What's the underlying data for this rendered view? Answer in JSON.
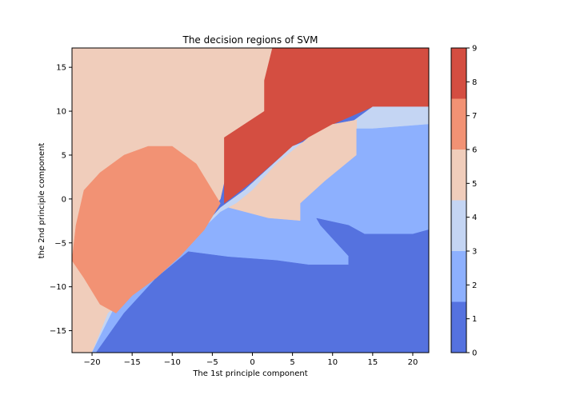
{
  "chart_data": {
    "type": "heatmap",
    "title": "The decision regions of SVM",
    "xlabel": "The 1st principle component",
    "ylabel": "the 2nd principle component",
    "xlim": [
      -22.5,
      22
    ],
    "ylim": [
      -17.5,
      17.2
    ],
    "xticks": [
      -20,
      -15,
      -10,
      -5,
      0,
      5,
      10,
      15,
      20
    ],
    "yticks": [
      -15,
      -10,
      -5,
      0,
      5,
      10,
      15
    ],
    "colorbar": {
      "ticks": [
        0,
        1,
        2,
        3,
        4,
        5,
        6,
        7,
        8,
        9
      ],
      "levels": [
        0,
        1.5,
        3,
        4.5,
        6,
        7.5,
        9
      ],
      "colors": [
        "#5572df",
        "#8db0fe",
        "#c4d5f3",
        "#f0cdbb",
        "#f29274",
        "#d44e41"
      ]
    },
    "regions": [
      {
        "band": 3,
        "color": "#f0cdbb",
        "polygon": [
          [
            -22.5,
            17.2
          ],
          [
            2.5,
            17.2
          ],
          [
            1.5,
            13.5
          ],
          [
            1.5,
            10
          ],
          [
            -3.5,
            7
          ],
          [
            -3.5,
            2
          ],
          [
            -4,
            0
          ],
          [
            -8,
            -5
          ],
          [
            -13,
            -9
          ],
          [
            -18,
            -13
          ],
          [
            -19.5,
            -17.5
          ],
          [
            -22.5,
            -17.5
          ]
        ]
      },
      {
        "band": 5,
        "color": "#d44e41",
        "polygon": [
          [
            2.5,
            17.2
          ],
          [
            22,
            17.2
          ],
          [
            22,
            10.5
          ],
          [
            15,
            10.5
          ],
          [
            10,
            8.5
          ],
          [
            5,
            6
          ],
          [
            0,
            2
          ],
          [
            -3.5,
            -0.5
          ],
          [
            -3.5,
            7
          ],
          [
            1.5,
            10
          ],
          [
            1.5,
            13.5
          ]
        ]
      },
      {
        "band": 2,
        "color": "#c4d5f3",
        "polygon": [
          [
            22,
            10.5
          ],
          [
            15,
            10.5
          ],
          [
            12,
            8.5
          ],
          [
            5,
            6
          ],
          [
            -1,
            1
          ],
          [
            -4,
            -1
          ],
          [
            -8,
            -5
          ],
          [
            -13,
            -9
          ],
          [
            -18,
            -13
          ],
          [
            -20,
            -17.5
          ],
          [
            22,
            -17.5
          ]
        ]
      },
      {
        "band": 3,
        "color": "#f0cdbb",
        "polygon": [
          [
            13,
            9
          ],
          [
            10,
            8.5
          ],
          [
            7,
            7
          ],
          [
            3,
            4
          ],
          [
            0,
            1
          ],
          [
            -2,
            -0.5
          ],
          [
            -3,
            -1
          ],
          [
            2,
            -2.2
          ],
          [
            6,
            -2.5
          ],
          [
            6,
            -0.5
          ],
          [
            9,
            2
          ],
          [
            13,
            5
          ]
        ]
      },
      {
        "band": 1,
        "color": "#8db0fe",
        "polygon": [
          [
            22,
            8.5
          ],
          [
            15,
            8
          ],
          [
            13,
            8
          ],
          [
            13,
            5
          ],
          [
            9,
            2
          ],
          [
            6,
            -0.5
          ],
          [
            6,
            -2.5
          ],
          [
            2,
            -2.2
          ],
          [
            -3,
            -1
          ],
          [
            -4,
            -1.5
          ],
          [
            -8,
            -5
          ],
          [
            -12,
            -8.5
          ],
          [
            -17,
            -12
          ],
          [
            -20,
            -17.5
          ],
          [
            22,
            -17.5
          ]
        ]
      },
      {
        "band": 0,
        "color": "#5572df",
        "polygon": [
          [
            8,
            -2.2
          ],
          [
            12,
            -3
          ],
          [
            14,
            -4
          ],
          [
            20,
            -4
          ],
          [
            22,
            -3.5
          ],
          [
            22,
            -17.5
          ],
          [
            -19.5,
            -17.5
          ],
          [
            -16,
            -13
          ],
          [
            -12,
            -9
          ],
          [
            -8,
            -6
          ],
          [
            -3,
            -6.6
          ],
          [
            3,
            -7
          ],
          [
            7,
            -7.5
          ],
          [
            12,
            -7.5
          ],
          [
            12,
            -6.5
          ],
          [
            10,
            -4.5
          ],
          [
            8.5,
            -3
          ]
        ]
      },
      {
        "band": 4,
        "color": "#f29274",
        "polygon": [
          [
            -13,
            6
          ],
          [
            -10,
            6
          ],
          [
            -7,
            4
          ],
          [
            -5,
            1
          ],
          [
            -4,
            -0.5
          ],
          [
            -6,
            -3.5
          ],
          [
            -9,
            -6.5
          ],
          [
            -12,
            -9
          ],
          [
            -15,
            -11
          ],
          [
            -17,
            -13
          ],
          [
            -19,
            -12
          ],
          [
            -21,
            -9
          ],
          [
            -22.5,
            -7
          ],
          [
            -22,
            -3
          ],
          [
            -21,
            1
          ],
          [
            -19,
            3
          ],
          [
            -16,
            5
          ]
        ]
      }
    ]
  }
}
